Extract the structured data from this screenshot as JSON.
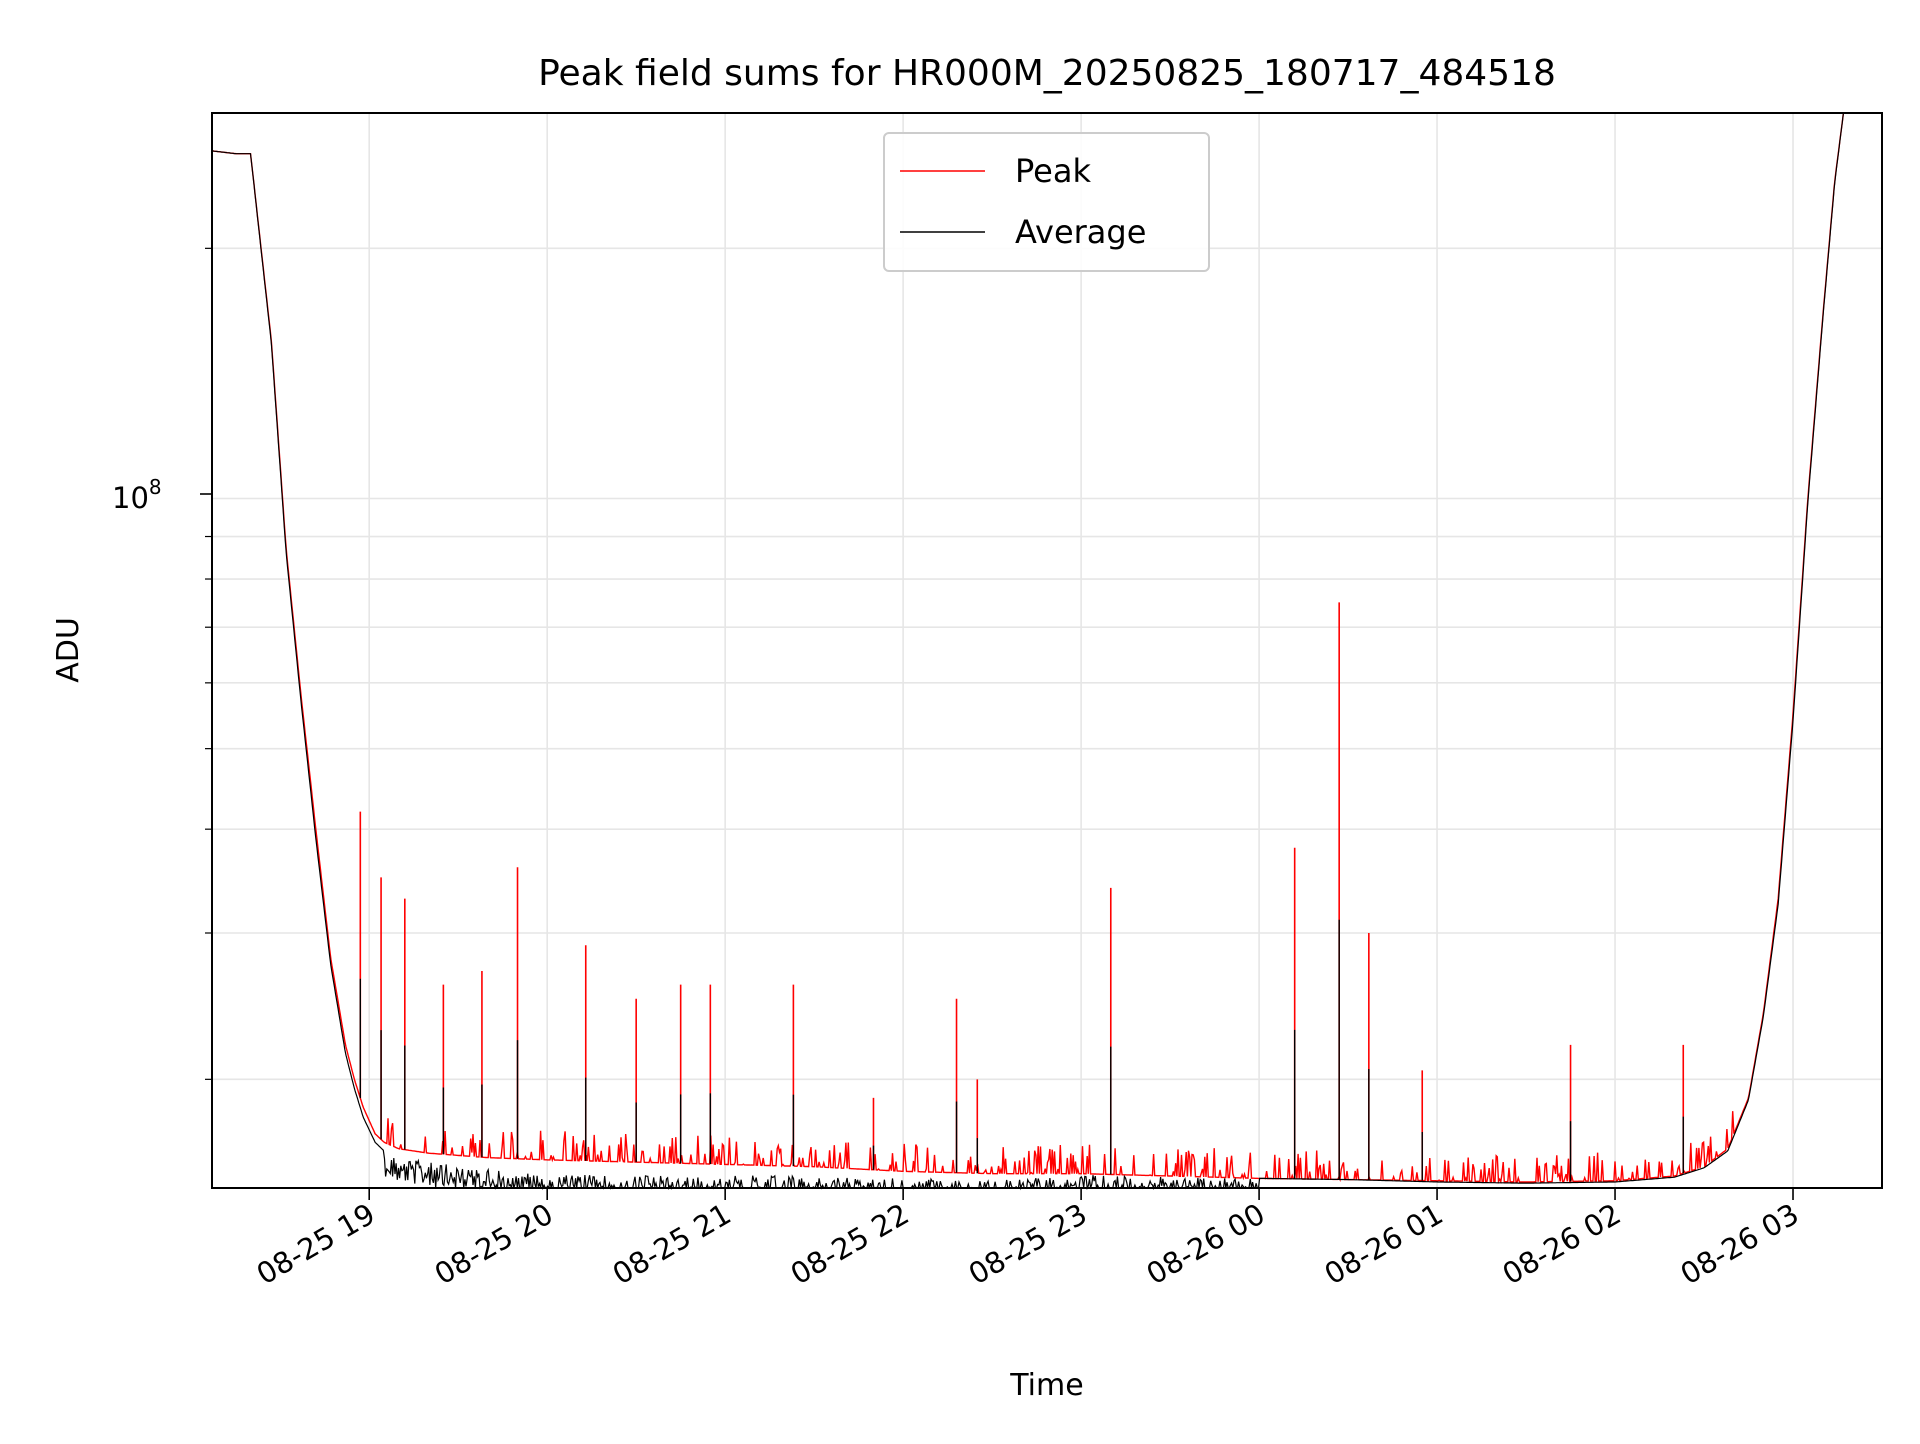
{
  "chart_data": {
    "type": "line",
    "title": "Peak field sums for HR000M_20250825_180717_484518",
    "xlabel": "Time",
    "ylabel": "ADU",
    "y_scale": "log",
    "y_tick_label": {
      "base": "10",
      "exponent": "8"
    },
    "xlim": [
      "2025-08-25 18:07",
      "2025-08-26 03:30"
    ],
    "ylim": [
      14800000,
      291000000
    ],
    "x_tick_labels": [
      "08-25 19",
      "08-25 20",
      "08-25 21",
      "08-25 22",
      "08-25 23",
      "08-26 00",
      "08-26 01",
      "08-26 02",
      "08-26 03"
    ],
    "x_ticks": [
      "2025-08-25 19:00",
      "2025-08-25 20:00",
      "2025-08-25 21:00",
      "2025-08-25 22:00",
      "2025-08-25 23:00",
      "2025-08-26 00:00",
      "2025-08-26 01:00",
      "2025-08-26 02:00",
      "2025-08-26 03:00"
    ],
    "grid": true,
    "legend_position": "top-center",
    "series": [
      {
        "name": "Peak",
        "color": "#ff0000",
        "x": [
          "2025-08-25 18:07",
          "2025-08-25 18:15",
          "2025-08-25 18:20",
          "2025-08-25 18:27",
          "2025-08-25 18:32",
          "2025-08-25 18:37",
          "2025-08-25 18:42",
          "2025-08-25 18:47",
          "2025-08-25 18:52",
          "2025-08-25 18:55",
          "2025-08-25 18:58",
          "2025-08-25 19:02",
          "2025-08-25 19:05",
          "2025-08-25 19:10",
          "2025-08-25 19:20",
          "2025-08-25 19:40",
          "2025-08-25 20:00",
          "2025-08-25 20:30",
          "2025-08-25 21:00",
          "2025-08-25 21:30",
          "2025-08-25 22:00",
          "2025-08-25 22:30",
          "2025-08-25 23:00",
          "2025-08-25 23:30",
          "2025-08-26 00:00",
          "2025-08-26 00:30",
          "2025-08-26 01:00",
          "2025-08-26 01:30",
          "2025-08-26 02:00",
          "2025-08-26 02:20",
          "2025-08-26 02:30",
          "2025-08-26 02:38",
          "2025-08-26 02:45",
          "2025-08-26 02:50",
          "2025-08-26 02:55",
          "2025-08-26 03:00",
          "2025-08-26 03:05",
          "2025-08-26 03:10",
          "2025-08-26 03:14",
          "2025-08-26 03:17"
        ],
        "values": [
          262000000,
          260000000,
          260000000,
          155000000,
          87000000,
          58000000,
          40000000,
          28000000,
          22000000,
          20000000,
          18500000,
          17200000,
          16800000,
          16500000,
          16300000,
          16100000,
          16000000,
          15900000,
          15800000,
          15700000,
          15500000,
          15400000,
          15400000,
          15300000,
          15200000,
          15150000,
          15100000,
          15050000,
          15100000,
          15300000,
          15700000,
          16500000,
          19000000,
          24000000,
          33000000,
          55000000,
          100000000,
          165000000,
          240000000,
          291000000
        ]
      },
      {
        "name": "Average",
        "color": "#000000",
        "x": [
          "2025-08-25 18:07",
          "2025-08-25 18:15",
          "2025-08-25 18:20",
          "2025-08-25 18:27",
          "2025-08-25 18:32",
          "2025-08-25 18:37",
          "2025-08-25 18:42",
          "2025-08-25 18:47",
          "2025-08-25 18:52",
          "2025-08-25 18:55",
          "2025-08-25 18:58",
          "2025-08-25 19:02",
          "2025-08-25 19:05",
          "2025-08-25 19:10",
          "2025-08-25 19:20",
          "2025-08-25 19:40",
          "2025-08-25 20:00",
          "2025-08-25 20:30",
          "2025-08-25 21:00",
          "2025-08-25 21:30",
          "2025-08-25 22:00",
          "2025-08-25 22:30",
          "2025-08-25 23:00",
          "2025-08-25 23:30",
          "2025-08-26 00:00",
          "2025-08-26 00:30",
          "2025-08-26 01:00",
          "2025-08-26 01:30",
          "2025-08-26 02:00",
          "2025-08-26 02:20",
          "2025-08-26 02:30",
          "2025-08-26 02:38",
          "2025-08-26 02:45",
          "2025-08-26 02:50",
          "2025-08-26 02:55",
          "2025-08-26 03:00",
          "2025-08-26 03:05",
          "2025-08-26 03:10",
          "2025-08-26 03:14",
          "2025-08-26 03:17"
        ],
        "values": [
          262000000,
          260000000,
          260000000,
          154000000,
          86000000,
          57000000,
          39000000,
          27500000,
          21500000,
          19500000,
          18000000,
          16800000,
          16400000,
          16100000,
          15900000,
          15600000,
          15400000,
          15300000,
          15400000,
          15250000,
          15200000,
          15100000,
          15350000,
          15250000,
          15200000,
          15150000,
          15050000,
          15000000,
          15050000,
          15250000,
          15650000,
          16400000,
          18900000,
          23800000,
          32500000,
          54000000,
          99000000,
          164000000,
          239000000,
          291000000
        ]
      }
    ],
    "annotations_peaks": {
      "series": "Peak",
      "x": [
        "2025-08-25 18:57",
        "2025-08-25 19:04",
        "2025-08-25 19:12",
        "2025-08-25 19:25",
        "2025-08-25 19:38",
        "2025-08-25 19:50",
        "2025-08-25 20:13",
        "2025-08-25 20:30",
        "2025-08-25 20:45",
        "2025-08-25 20:55",
        "2025-08-25 21:23",
        "2025-08-25 21:50",
        "2025-08-25 22:18",
        "2025-08-25 22:25",
        "2025-08-25 23:10",
        "2025-08-26 00:12",
        "2025-08-26 00:27",
        "2025-08-26 00:37",
        "2025-08-26 00:55",
        "2025-08-26 01:45",
        "2025-08-26 02:23"
      ],
      "values": [
        42000000,
        35000000,
        33000000,
        26000000,
        27000000,
        36000000,
        29000000,
        25000000,
        26000000,
        26000000,
        26000000,
        19000000,
        25000000,
        20000000,
        34000000,
        38000000,
        75000000,
        30000000,
        20500000,
        22000000,
        22000000
      ]
    }
  }
}
